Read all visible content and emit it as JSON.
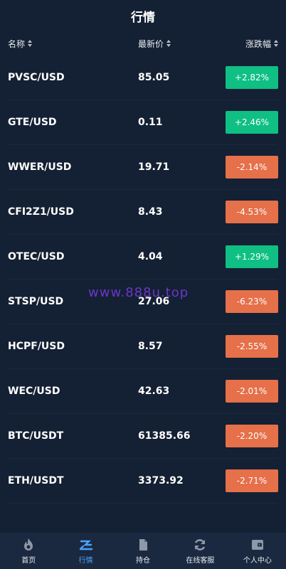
{
  "header": {
    "title": "行情"
  },
  "columns": {
    "name": "名称",
    "price": "最新价",
    "change": "涨跌幅"
  },
  "rows": [
    {
      "symbol": "PVSC/USD",
      "price": "85.05",
      "change": "+2.82%",
      "direction": "up"
    },
    {
      "symbol": "GTE/USD",
      "price": "0.11",
      "change": "+2.46%",
      "direction": "up"
    },
    {
      "symbol": "WWER/USD",
      "price": "19.71",
      "change": "-2.14%",
      "direction": "down"
    },
    {
      "symbol": "CFI2Z1/USD",
      "price": "8.43",
      "change": "-4.53%",
      "direction": "down"
    },
    {
      "symbol": "OTEC/USD",
      "price": "4.04",
      "change": "+1.29%",
      "direction": "up"
    },
    {
      "symbol": "STSP/USD",
      "price": "27.06",
      "change": "-6.23%",
      "direction": "down"
    },
    {
      "symbol": "HCPF/USD",
      "price": "8.57",
      "change": "-2.55%",
      "direction": "down"
    },
    {
      "symbol": "WEC/USD",
      "price": "42.63",
      "change": "-2.01%",
      "direction": "down"
    },
    {
      "symbol": "BTC/USDT",
      "price": "61385.66",
      "change": "-2.20%",
      "direction": "down"
    },
    {
      "symbol": "ETH/USDT",
      "price": "3373.92",
      "change": "-2.71%",
      "direction": "down"
    }
  ],
  "watermark": "www.888u.top",
  "tabs": [
    {
      "label": "首页",
      "icon": "flame-icon",
      "active": false
    },
    {
      "label": "行情",
      "icon": "market-icon",
      "active": true
    },
    {
      "label": "持仓",
      "icon": "document-icon",
      "active": false
    },
    {
      "label": "在线客服",
      "icon": "refresh-icon",
      "active": false
    },
    {
      "label": "个人中心",
      "icon": "wallet-icon",
      "active": false
    }
  ],
  "colors": {
    "background": "#142033",
    "up": "#0fbf83",
    "down": "#e5704a",
    "active_tab": "#4aa3ff"
  }
}
